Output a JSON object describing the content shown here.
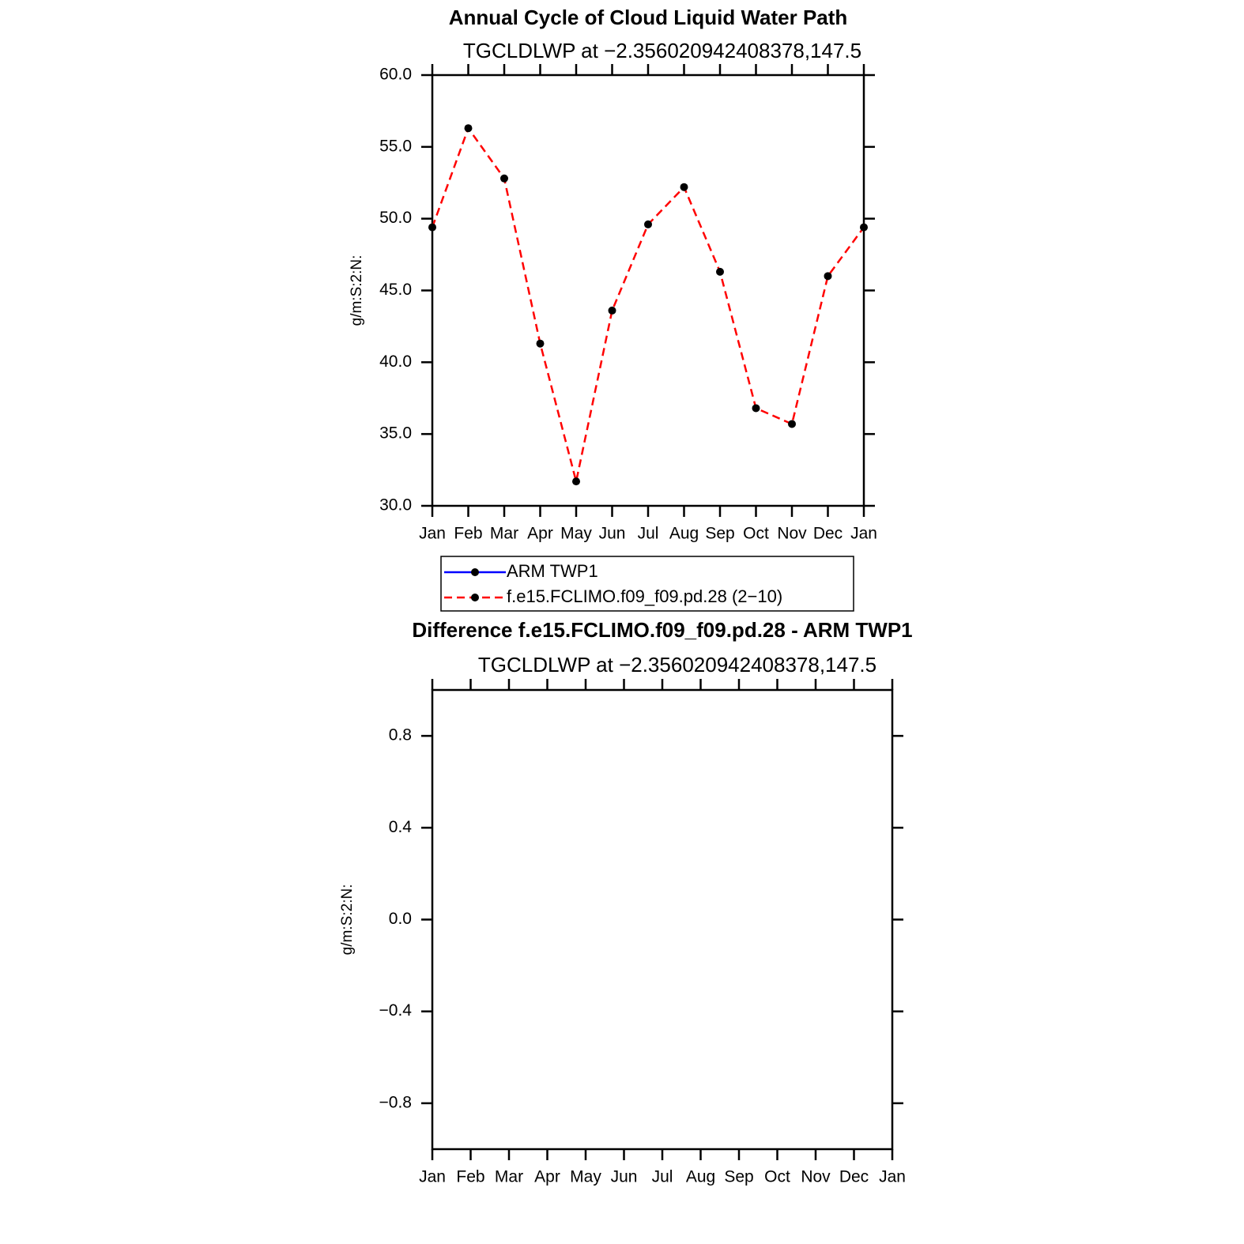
{
  "chart_data": [
    {
      "type": "line",
      "title": "Annual Cycle of Cloud Liquid Water Path",
      "subtitle": "TGCLDLWP at −2.356020942408378,147.5",
      "y_label": "g/m:S:2:N:",
      "categories": [
        "Jan",
        "Feb",
        "Mar",
        "Apr",
        "May",
        "Jun",
        "Jul",
        "Aug",
        "Sep",
        "Oct",
        "Nov",
        "Dec",
        "Jan"
      ],
      "series": [
        {
          "name": "ARM TWP1",
          "color": "#0000ff",
          "line_style": "solid",
          "marker": "circle",
          "values": [
            null,
            null,
            null,
            null,
            null,
            null,
            null,
            null,
            null,
            null,
            null,
            null,
            null
          ]
        },
        {
          "name": "f.e15.FCLIMO.f09_f09.pd.28 (2−10)",
          "color": "#ff0000",
          "line_style": "dashed",
          "marker": "circle",
          "values": [
            49.4,
            56.3,
            52.8,
            41.3,
            31.7,
            43.6,
            49.6,
            52.2,
            46.3,
            36.8,
            35.7,
            46.0,
            49.4
          ]
        }
      ],
      "ylim": [
        30,
        60
      ],
      "yticks": [
        {
          "value": 30,
          "label": "30.0"
        },
        {
          "value": 35,
          "label": "35.0"
        },
        {
          "value": 40,
          "label": "40.0"
        },
        {
          "value": 45,
          "label": "45.0"
        },
        {
          "value": 50,
          "label": "50.0"
        },
        {
          "value": 55,
          "label": "55.0"
        },
        {
          "value": 60,
          "label": "60.0"
        }
      ],
      "legend": "below"
    },
    {
      "type": "line",
      "title": "Difference f.e15.FCLIMO.f09_f09.pd.28 - ARM TWP1",
      "subtitle": "TGCLDLWP at −2.356020942408378,147.5",
      "y_label": "g/m:S:2:N:",
      "categories": [
        "Jan",
        "Feb",
        "Mar",
        "Apr",
        "May",
        "Jun",
        "Jul",
        "Aug",
        "Sep",
        "Oct",
        "Nov",
        "Dec",
        "Jan"
      ],
      "ylim": [
        -1,
        1
      ],
      "yticks": [
        {
          "value": -0.8,
          "label": "−0.8"
        },
        {
          "value": -0.4,
          "label": "−0.4"
        },
        {
          "value": 0,
          "label": "0.0"
        },
        0.4,
        0.8
      ]
    }
  ]
}
